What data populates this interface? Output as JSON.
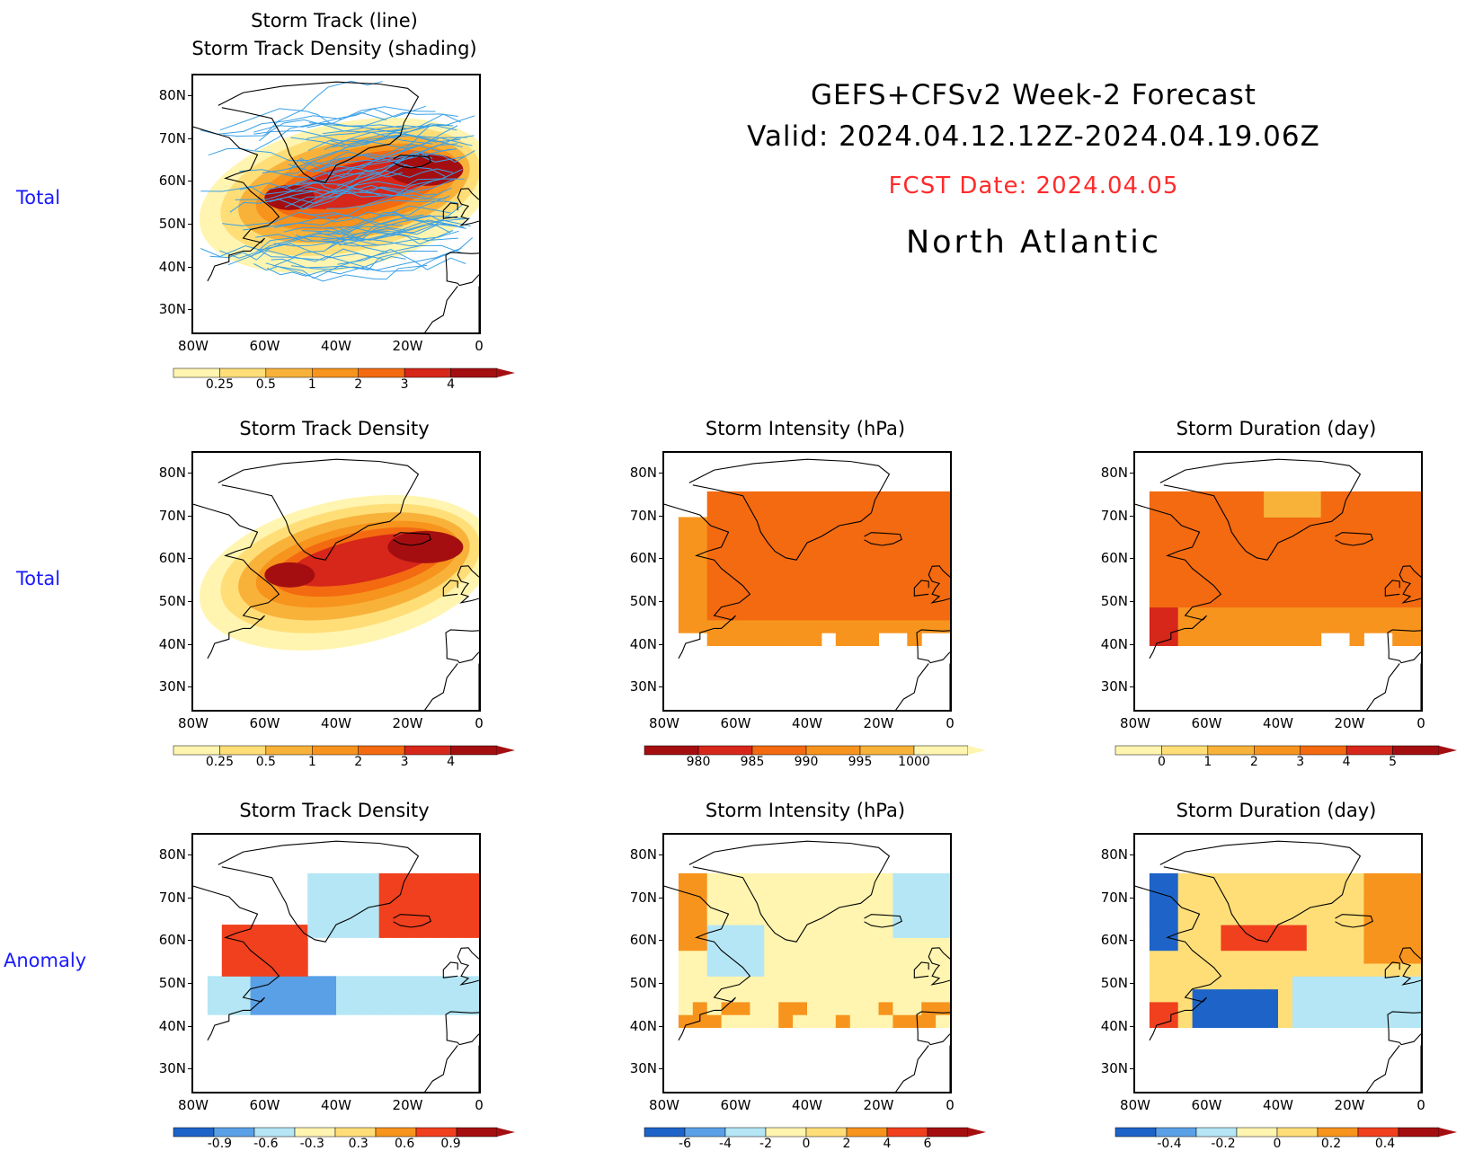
{
  "header": {
    "line1": "GEFS+CFSv2 Week-2 Forecast",
    "line2": "Valid: 2024.04.12.12Z-2024.04.19.06Z",
    "fcst": "FCST Date: 2024.04.05",
    "region": "North Atlantic",
    "fcst_color": "#ff2b2b"
  },
  "row_labels": {
    "r1": "Total",
    "r2": "Total",
    "r3": "Anomaly"
  },
  "axes": {
    "lat": [
      "80N",
      "70N",
      "60N",
      "50N",
      "40N",
      "30N"
    ],
    "lon": [
      "80W",
      "60W",
      "40W",
      "20W",
      "0"
    ]
  },
  "panels": {
    "p1": {
      "title1": "Storm Track (line)",
      "title2": "Storm Track Density (shading)",
      "colorbar": [
        "0.25",
        "0.5",
        "1",
        "2",
        "3",
        "4"
      ]
    },
    "p2": {
      "title": "Storm Track Density",
      "colorbar": [
        "0.25",
        "0.5",
        "1",
        "2",
        "3",
        "4"
      ]
    },
    "p3": {
      "title": "Storm Intensity (hPa)",
      "colorbar": [
        "980",
        "985",
        "990",
        "995",
        "1000"
      ]
    },
    "p4": {
      "title": "Storm Duration (day)",
      "colorbar": [
        "0",
        "1",
        "2",
        "3",
        "4",
        "5"
      ]
    },
    "p5": {
      "title": "Storm Track Density",
      "colorbar": [
        "-0.9",
        "-0.6",
        "-0.3",
        "0.3",
        "0.6",
        "0.9"
      ]
    },
    "p6": {
      "title": "Storm Intensity (hPa)",
      "colorbar": [
        "-6",
        "-4",
        "-2",
        "0",
        "2",
        "4",
        "6"
      ]
    },
    "p7": {
      "title": "Storm Duration (day)",
      "colorbar": [
        "-0.4",
        "-0.2",
        "0",
        "0.2",
        "0.4"
      ]
    }
  },
  "colors": {
    "total_scale": [
      "#fff5b0",
      "#ffde78",
      "#f8b23a",
      "#f7941d",
      "#f36a10",
      "#d7261a",
      "#a50e10"
    ],
    "intensity_scale": [
      "#a50e10",
      "#d7261a",
      "#f36a10",
      "#f7941d",
      "#f8b23a",
      "#fff5b0"
    ],
    "anom_scale": [
      "#1e64c8",
      "#5aa0e6",
      "#b4e6f5",
      "#fff5b0",
      "#ffde78",
      "#f7941d",
      "#f0401e",
      "#a50e10"
    ],
    "track_line": "#3aa0e6"
  }
}
